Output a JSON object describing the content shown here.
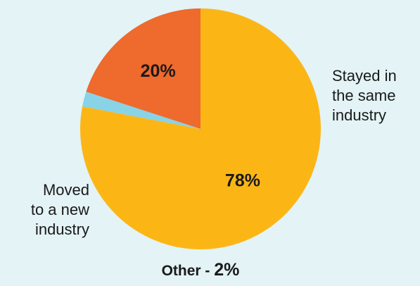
{
  "chart_data": {
    "type": "pie",
    "slices": [
      {
        "label": "Stayed in the same industry",
        "display_label": "Stayed in\nthe same\nindustry",
        "value": 78,
        "value_label": "78%",
        "color": "#fbb616"
      },
      {
        "label": "Other",
        "value": 2,
        "value_label": "2%",
        "color": "#88d3e6"
      },
      {
        "label": "Moved to a new industry",
        "display_label": "Moved\nto a new\nindustry",
        "value": 20,
        "value_label": "20%",
        "color": "#ee6a2d"
      }
    ],
    "other_prefix": "Other - "
  }
}
